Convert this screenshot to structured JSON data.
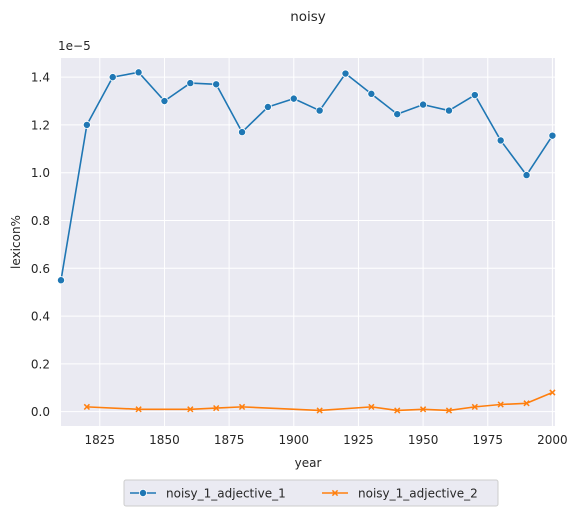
{
  "chart_data": {
    "type": "line",
    "title": "noisy",
    "xlabel": "year",
    "ylabel": "lexicon%",
    "y_offset_label": "1e−5",
    "xlim": [
      1810,
      2001
    ],
    "ylim": [
      -0.06,
      1.48
    ],
    "x_ticks": [
      1825,
      1850,
      1875,
      1900,
      1925,
      1950,
      1975,
      2000
    ],
    "y_ticks": [
      0.0,
      0.2,
      0.4,
      0.6,
      0.8,
      1.0,
      1.2,
      1.4
    ],
    "grid": true,
    "legend_position": "bottom-center",
    "series": [
      {
        "name": "noisy_1_adjective_1",
        "color": "#1f77b4",
        "marker": "circle",
        "x": [
          1810,
          1820,
          1830,
          1840,
          1850,
          1860,
          1870,
          1880,
          1890,
          1900,
          1910,
          1920,
          1930,
          1940,
          1950,
          1960,
          1970,
          1980,
          1990,
          2000
        ],
        "y": [
          0.55,
          1.2,
          1.4,
          1.42,
          1.3,
          1.375,
          1.37,
          1.17,
          1.275,
          1.31,
          1.26,
          1.415,
          1.33,
          1.245,
          1.285,
          1.26,
          1.325,
          1.135,
          0.99,
          1.155
        ]
      },
      {
        "name": "noisy_1_adjective_2",
        "color": "#ff7f0e",
        "marker": "x",
        "x": [
          1820,
          1840,
          1860,
          1870,
          1880,
          1910,
          1930,
          1940,
          1950,
          1960,
          1970,
          1980,
          1990,
          2000
        ],
        "y": [
          0.02,
          0.01,
          0.01,
          0.015,
          0.02,
          0.005,
          0.02,
          0.005,
          0.01,
          0.005,
          0.02,
          0.03,
          0.035,
          0.08
        ]
      }
    ]
  }
}
